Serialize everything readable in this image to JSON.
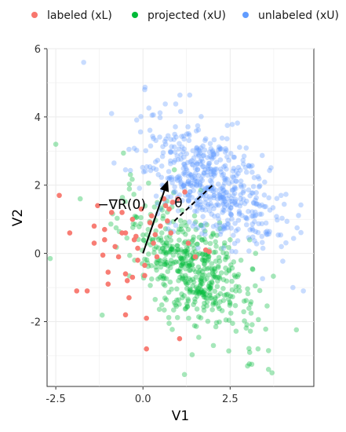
{
  "chart_data": {
    "type": "scatter",
    "title": "",
    "xlabel": "V1",
    "ylabel": "V2",
    "xlim": [
      -2.75,
      4.9
    ],
    "ylim": [
      -3.9,
      6.0
    ],
    "x_ticks": [
      "-2.5",
      "0.0",
      "2.5"
    ],
    "x_tick_values": [
      -2.5,
      0.0,
      2.5
    ],
    "y_ticks": [
      "-2",
      "0",
      "2",
      "4",
      "6"
    ],
    "y_tick_values": [
      -2,
      0,
      2,
      4,
      6
    ],
    "grid": true,
    "legend_position": "top",
    "legend": [
      {
        "key": "labeled",
        "label": "labeled (xL)",
        "color": "#f8766d"
      },
      {
        "key": "projected",
        "label": "projected (xU)",
        "color": "#00ba38"
      },
      {
        "key": "unlabeled",
        "label": "unlabeled (xU)",
        "color": "#619cff"
      }
    ],
    "series": [
      {
        "name": "labeled (xL)",
        "color": "#f8766d",
        "opacity": 0.95,
        "points": [
          [
            -2.4,
            1.7
          ],
          [
            -2.1,
            0.6
          ],
          [
            -1.9,
            -1.1
          ],
          [
            -1.6,
            -1.1
          ],
          [
            -1.3,
            1.4
          ],
          [
            -1.4,
            0.8
          ],
          [
            -1.4,
            0.3
          ],
          [
            -1.1,
            0.7
          ],
          [
            -1.1,
            0.4
          ],
          [
            -1.15,
            -0.05
          ],
          [
            -1.0,
            -0.55
          ],
          [
            -1.0,
            -0.9
          ],
          [
            -0.9,
            1.2
          ],
          [
            -0.8,
            0.2
          ],
          [
            -0.7,
            -0.1
          ],
          [
            -0.6,
            1.2
          ],
          [
            -0.6,
            0.6
          ],
          [
            -0.5,
            0.6
          ],
          [
            -0.5,
            -0.6
          ],
          [
            -0.45,
            -0.8
          ],
          [
            -0.4,
            -1.3
          ],
          [
            -0.5,
            -1.8
          ],
          [
            -0.3,
            -0.7
          ],
          [
            -0.3,
            1.0
          ],
          [
            -0.25,
            0.4
          ],
          [
            -0.2,
            0.5
          ],
          [
            -0.15,
            0.15
          ],
          [
            -0.15,
            -0.2
          ],
          [
            -0.05,
            1.3
          ],
          [
            0.05,
            -0.35
          ],
          [
            0.05,
            -0.65
          ],
          [
            0.1,
            -1.9
          ],
          [
            0.1,
            -2.8
          ],
          [
            0.2,
            0.9
          ],
          [
            0.25,
            1.1
          ],
          [
            0.3,
            0.3
          ],
          [
            0.4,
            -0.1
          ],
          [
            0.5,
            0.8
          ],
          [
            0.6,
            1.6
          ],
          [
            0.65,
            1.4
          ],
          [
            0.7,
            0.95
          ],
          [
            0.8,
            0.6
          ],
          [
            0.85,
            1.5
          ],
          [
            1.0,
            1.6
          ],
          [
            1.2,
            1.8
          ],
          [
            1.3,
            0.3
          ],
          [
            1.5,
            -0.1
          ],
          [
            1.8,
            0.1
          ],
          [
            1.9,
            0.05
          ],
          [
            1.05,
            -2.5
          ],
          [
            0.75,
            1.3
          ],
          [
            0.35,
            0.55
          ]
        ]
      },
      {
        "name": "projected (xU)",
        "color": "#00ba38",
        "opacity": 0.35,
        "points": []
      },
      {
        "name": "unlabeled (xU)",
        "color": "#619cff",
        "opacity": 0.35,
        "points": []
      }
    ]
  },
  "annotations": {
    "gradient_label": "−∇R(0)",
    "angle_label": "θ",
    "gradient_arrow": {
      "from": [
        0.0,
        0.0
      ],
      "to": [
        0.7,
        2.1
      ]
    },
    "dashed_segment": {
      "from": [
        0.9,
        0.95
      ],
      "to": [
        2.05,
        2.05
      ]
    }
  }
}
